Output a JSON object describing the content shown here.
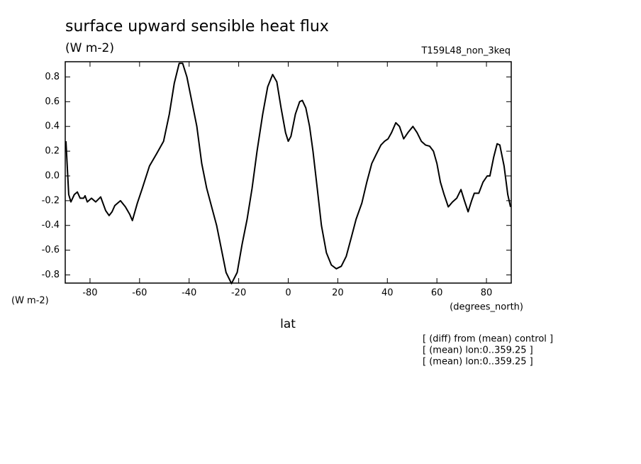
{
  "chart_data": {
    "type": "line",
    "title": "surface upward sensible heat flux",
    "units_top": "(W m-2)",
    "experiment": "T159L48_non_3keq",
    "y_axis_label": "(W m-2)",
    "x_axis_units": "(degrees_north)",
    "x_axis_label": "lat",
    "notes": [
      "[ (diff) from (mean) control ]",
      "[ (mean) lon:0..359.25 ]",
      "[ (mean) lon:0..359.25 ]"
    ],
    "x": [
      -89.7,
      -88.6,
      -87.7,
      -86.3,
      -85.1,
      -84,
      -82.6,
      -82,
      -81.1,
      -79.4,
      -77.7,
      -75.7,
      -73.7,
      -72.3,
      -71.1,
      -70,
      -67.7,
      -65.7,
      -64,
      -62.9,
      -60.9,
      -58.9,
      -56,
      -53.1,
      -50.3,
      -48,
      -46,
      -44,
      -42.6,
      -40.9,
      -38.9,
      -36.9,
      -34.9,
      -32.9,
      -30.9,
      -28.9,
      -26.9,
      -25.1,
      -22.9,
      -20.6,
      -18.6,
      -16.6,
      -14.6,
      -12.6,
      -10.3,
      -8.3,
      -6.3,
      -4.6,
      -2.9,
      -1.1,
      0,
      1.1,
      2.9,
      4.6,
      5.7,
      7.1,
      8.6,
      10,
      11.7,
      13.4,
      15.4,
      17.4,
      19.4,
      21.4,
      23.4,
      25.4,
      27.4,
      29.7,
      31.7,
      33.7,
      35.4,
      37.4,
      38.9,
      40.3,
      41.7,
      43.4,
      44.9,
      46.6,
      48.3,
      50.3,
      52,
      53.7,
      55.4,
      57.1,
      58.6,
      60,
      61.4,
      62.9,
      64.6,
      66.3,
      68,
      69.7,
      71.1,
      72.6,
      74,
      75.1,
      76.9,
      78.6,
      80.3,
      81.4,
      82.9,
      84.3,
      85.4,
      87.1,
      88.6,
      89.7
    ],
    "series": [
      {
        "color": "#000000",
        "values": [
          0.28,
          -0.15,
          -0.21,
          -0.15,
          -0.13,
          -0.18,
          -0.18,
          -0.16,
          -0.21,
          -0.18,
          -0.21,
          -0.17,
          -0.28,
          -0.32,
          -0.29,
          -0.24,
          -0.2,
          -0.25,
          -0.31,
          -0.36,
          -0.22,
          -0.1,
          0.08,
          0.18,
          0.28,
          0.5,
          0.75,
          0.91,
          0.91,
          0.8,
          0.6,
          0.4,
          0.1,
          -0.1,
          -0.25,
          -0.4,
          -0.6,
          -0.78,
          -0.87,
          -0.78,
          -0.55,
          -0.35,
          -0.1,
          0.2,
          0.5,
          0.72,
          0.82,
          0.76,
          0.55,
          0.35,
          0.28,
          0.32,
          0.5,
          0.6,
          0.61,
          0.55,
          0.4,
          0.2,
          -0.1,
          -0.4,
          -0.62,
          -0.72,
          -0.75,
          -0.73,
          -0.65,
          -0.5,
          -0.35,
          -0.22,
          -0.05,
          0.1,
          0.17,
          0.25,
          0.28,
          0.3,
          0.35,
          0.43,
          0.4,
          0.3,
          0.35,
          0.4,
          0.35,
          0.28,
          0.25,
          0.24,
          0.2,
          0.1,
          -0.05,
          -0.15,
          -0.25,
          -0.21,
          -0.18,
          -0.11,
          -0.2,
          -0.29,
          -0.2,
          -0.14,
          -0.14,
          -0.05,
          0.0,
          0.0,
          0.15,
          0.26,
          0.25,
          0.08,
          -0.15,
          -0.25
        ]
      }
    ],
    "xlim": [
      -90,
      90
    ],
    "ylim": [
      -0.866,
      0.923
    ],
    "xticks": [
      -80,
      -60,
      -40,
      -20,
      0,
      20,
      40,
      60,
      80
    ],
    "yticks": [
      -0.8,
      -0.6,
      -0.4,
      -0.2,
      {
        "value": 0,
        "label": "0.0"
      },
      0.2,
      0.4,
      0.6,
      0.8
    ]
  }
}
